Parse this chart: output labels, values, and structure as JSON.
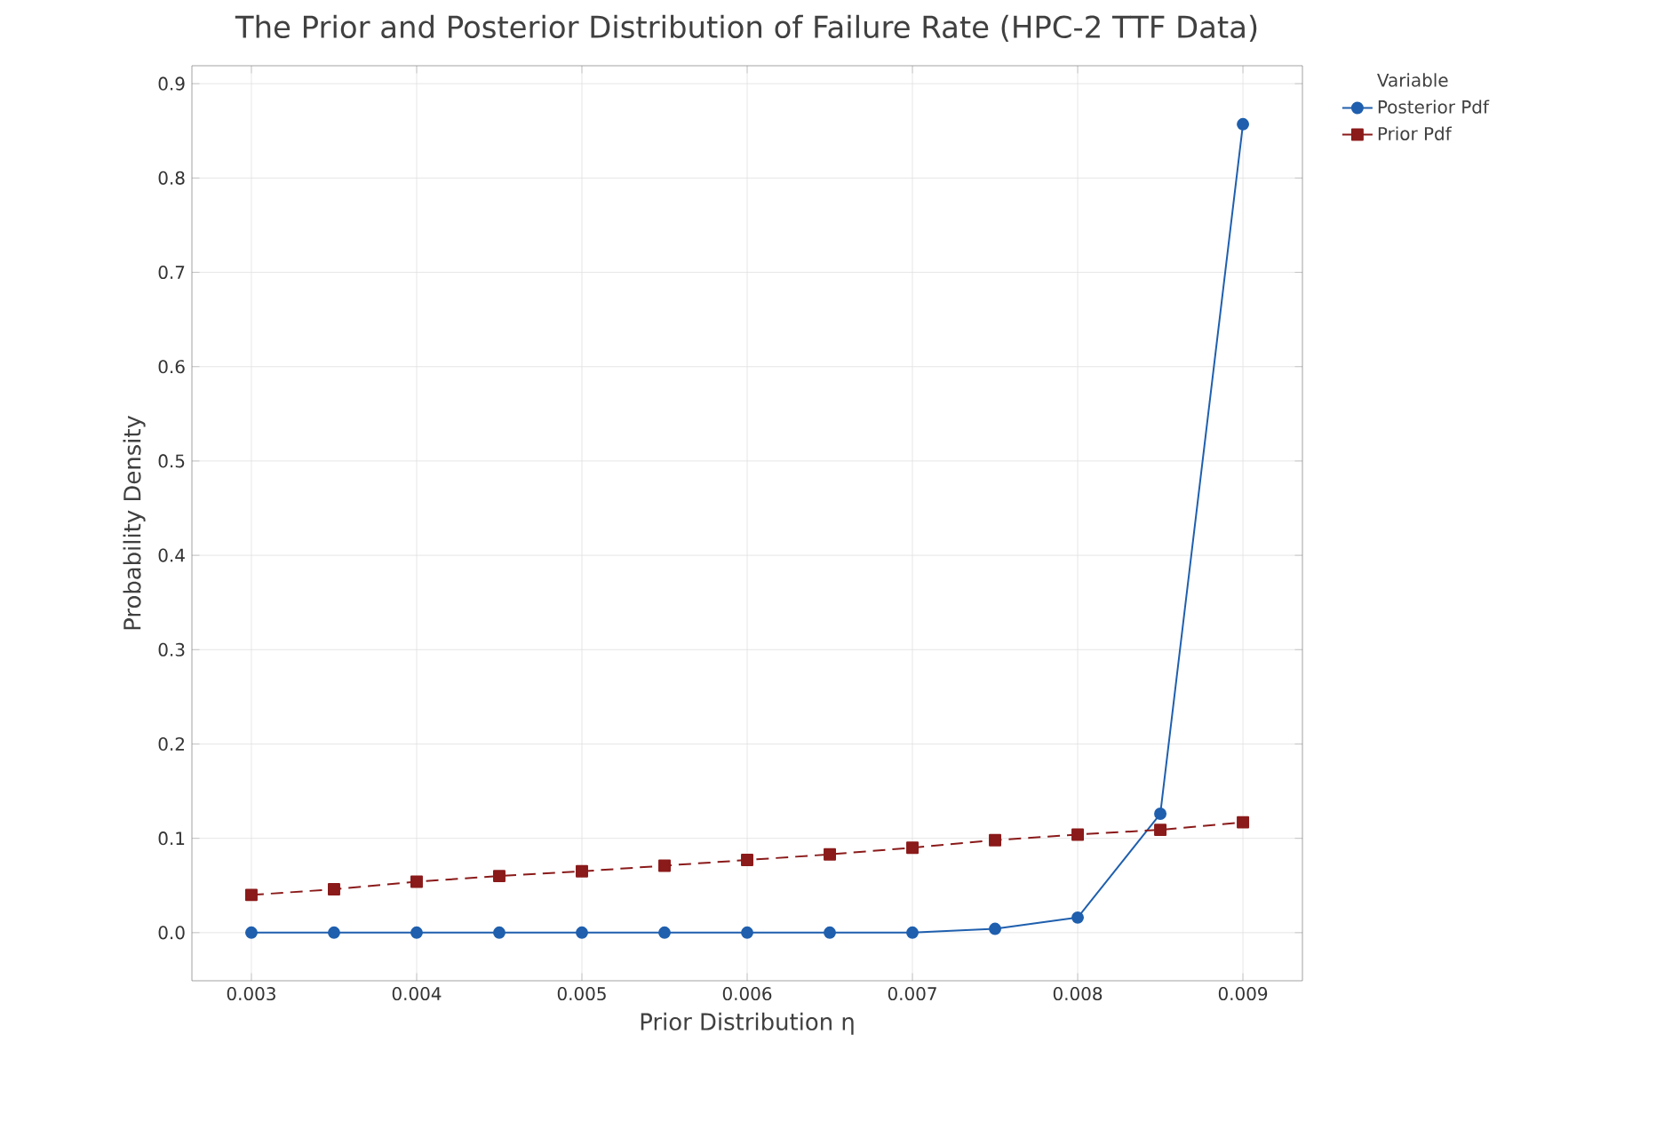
{
  "chart_data": {
    "type": "line",
    "title": "The Prior and Posterior Distribution of Failure Rate (HPC-2 TTF Data)",
    "xlabel": "Prior Distribution η",
    "ylabel": "Probability Density",
    "legend_title": "Variable",
    "x": [
      0.003,
      0.0035,
      0.004,
      0.0045,
      0.005,
      0.0055,
      0.006,
      0.0065,
      0.007,
      0.0075,
      0.008,
      0.0085,
      0.009
    ],
    "series": [
      {
        "name": "Posterior Pdf",
        "color": "#1f5fae",
        "marker": "circle",
        "line_style": "solid",
        "values": [
          0,
          0,
          0,
          0,
          0,
          0,
          0,
          0,
          0,
          0.004,
          0.016,
          0.126,
          0.857
        ]
      },
      {
        "name": "Prior Pdf",
        "color": "#8b1a1a",
        "marker": "square",
        "line_style": "dashed",
        "values": [
          0.04,
          0.046,
          0.054,
          0.06,
          0.065,
          0.071,
          0.077,
          0.083,
          0.09,
          0.098,
          0.104,
          0.109,
          0.117
        ]
      }
    ],
    "xlim": [
      0.00264,
      0.00936
    ],
    "ylim": [
      -0.051,
      0.919
    ],
    "xticks": [
      0.003,
      0.004,
      0.005,
      0.006,
      0.007,
      0.008,
      0.009
    ],
    "yticks": [
      {
        "value": 0,
        "label": "0.0"
      },
      0.1,
      0.2,
      0.3,
      0.4,
      0.5,
      0.6,
      0.7,
      0.8,
      0.9
    ],
    "grid": true,
    "legend": "top right"
  }
}
